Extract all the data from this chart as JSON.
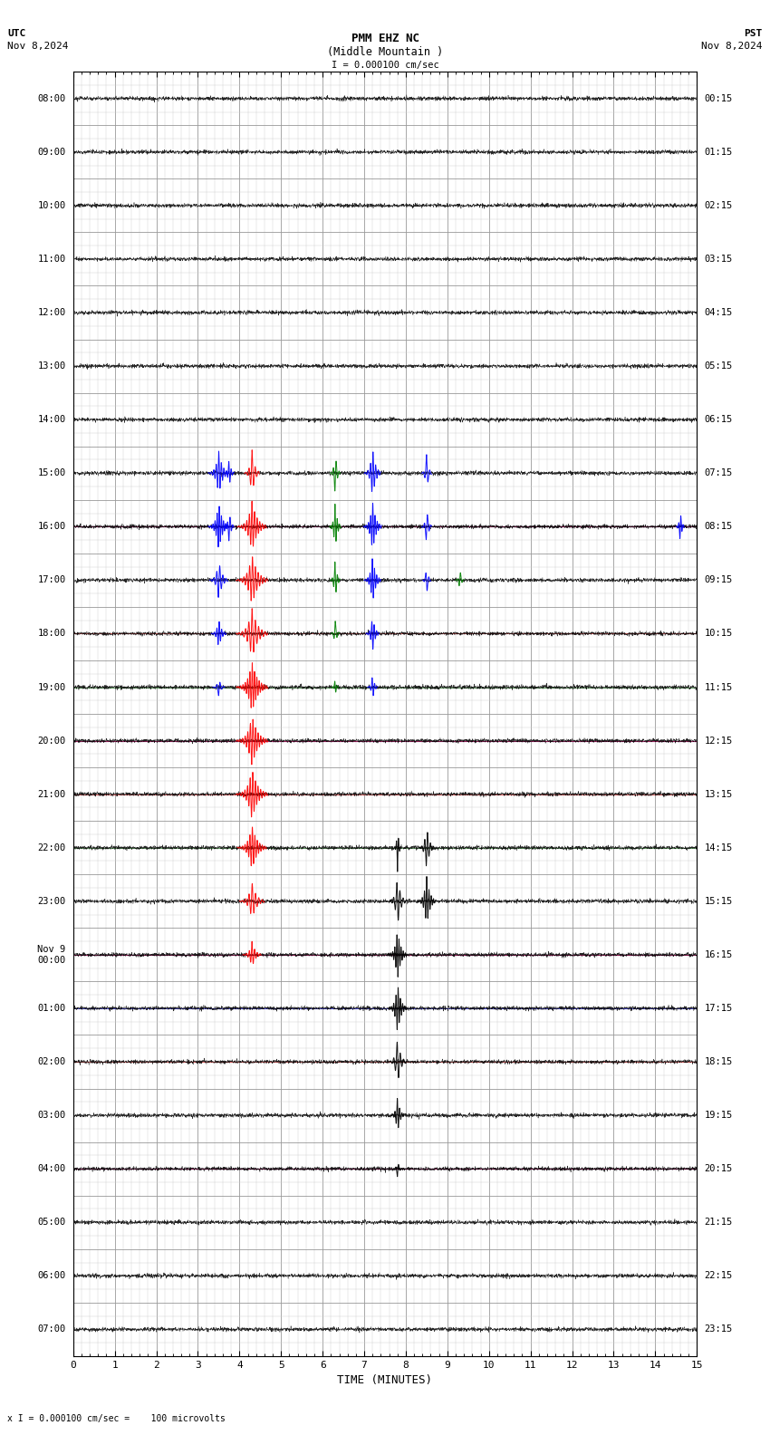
{
  "title_line1": "PMM EHZ NC",
  "title_line2": "(Middle Mountain )",
  "scale_text": "I = 0.000100 cm/sec",
  "utc_label": "UTC",
  "utc_date": "Nov 8,2024",
  "pst_label": "PST",
  "pst_date": "Nov 8,2024",
  "footer_text": "x I = 0.000100 cm/sec =    100 microvolts",
  "xlabel": "TIME (MINUTES)",
  "left_times": [
    "08:00",
    "09:00",
    "10:00",
    "11:00",
    "12:00",
    "13:00",
    "14:00",
    "15:00",
    "16:00",
    "17:00",
    "18:00",
    "19:00",
    "20:00",
    "21:00",
    "22:00",
    "23:00",
    "Nov 9\n00:00",
    "01:00",
    "02:00",
    "03:00",
    "04:00",
    "05:00",
    "06:00",
    "07:00"
  ],
  "right_times": [
    "00:15",
    "01:15",
    "02:15",
    "03:15",
    "04:15",
    "05:15",
    "06:15",
    "07:15",
    "08:15",
    "09:15",
    "10:15",
    "11:15",
    "12:15",
    "13:15",
    "14:15",
    "15:15",
    "16:15",
    "17:15",
    "18:15",
    "19:15",
    "20:15",
    "21:15",
    "22:15",
    "23:15"
  ],
  "num_rows": 24,
  "minutes_per_row": 15,
  "background_color": "#ffffff",
  "grid_major_color": "#999999",
  "grid_minor_color": "#cccccc",
  "trace_color": "#000000",
  "noise_amplitude": 0.018,
  "fig_width": 8.5,
  "fig_height": 15.84,
  "dpi": 100,
  "blue_line_rows": [
    8,
    12,
    16,
    17,
    20
  ],
  "red_line_rows": [
    8,
    10,
    12,
    13,
    16,
    18,
    20
  ],
  "green_line_rows": [
    11,
    14
  ],
  "seismic_events": [
    {
      "row": 7,
      "minute": 3.5,
      "half_dur": 0.25,
      "amplitude": 0.42,
      "color": "#0000ff"
    },
    {
      "row": 7,
      "minute": 3.75,
      "half_dur": 0.12,
      "amplitude": 0.28,
      "color": "#0000ff"
    },
    {
      "row": 8,
      "minute": 3.5,
      "half_dur": 0.25,
      "amplitude": 0.45,
      "color": "#0000ff"
    },
    {
      "row": 8,
      "minute": 3.75,
      "half_dur": 0.12,
      "amplitude": 0.32,
      "color": "#0000ff"
    },
    {
      "row": 9,
      "minute": 3.5,
      "half_dur": 0.22,
      "amplitude": 0.38,
      "color": "#0000ff"
    },
    {
      "row": 10,
      "minute": 3.5,
      "half_dur": 0.18,
      "amplitude": 0.28,
      "color": "#0000ff"
    },
    {
      "row": 11,
      "minute": 3.5,
      "half_dur": 0.14,
      "amplitude": 0.18,
      "color": "#0000ff"
    },
    {
      "row": 7,
      "minute": 4.3,
      "half_dur": 0.18,
      "amplitude": 0.45,
      "color": "#ff0000"
    },
    {
      "row": 8,
      "minute": 4.3,
      "half_dur": 0.35,
      "amplitude": 0.48,
      "color": "#ff0000"
    },
    {
      "row": 9,
      "minute": 4.3,
      "half_dur": 0.38,
      "amplitude": 0.48,
      "color": "#ff0000"
    },
    {
      "row": 10,
      "minute": 4.3,
      "half_dur": 0.38,
      "amplitude": 0.48,
      "color": "#ff0000"
    },
    {
      "row": 11,
      "minute": 4.3,
      "half_dur": 0.38,
      "amplitude": 0.48,
      "color": "#ff0000"
    },
    {
      "row": 12,
      "minute": 4.3,
      "half_dur": 0.38,
      "amplitude": 0.48,
      "color": "#ff0000"
    },
    {
      "row": 13,
      "minute": 4.3,
      "half_dur": 0.38,
      "amplitude": 0.48,
      "color": "#ff0000"
    },
    {
      "row": 14,
      "minute": 4.3,
      "half_dur": 0.35,
      "amplitude": 0.42,
      "color": "#ff0000"
    },
    {
      "row": 15,
      "minute": 4.3,
      "half_dur": 0.3,
      "amplitude": 0.35,
      "color": "#ff0000"
    },
    {
      "row": 16,
      "minute": 4.3,
      "half_dur": 0.22,
      "amplitude": 0.25,
      "color": "#ff0000"
    },
    {
      "row": 7,
      "minute": 6.3,
      "half_dur": 0.12,
      "amplitude": 0.42,
      "color": "#008000"
    },
    {
      "row": 8,
      "minute": 6.3,
      "half_dur": 0.14,
      "amplitude": 0.45,
      "color": "#008000"
    },
    {
      "row": 9,
      "minute": 6.3,
      "half_dur": 0.12,
      "amplitude": 0.4,
      "color": "#008000"
    },
    {
      "row": 10,
      "minute": 6.3,
      "half_dur": 0.1,
      "amplitude": 0.28,
      "color": "#008000"
    },
    {
      "row": 11,
      "minute": 6.3,
      "half_dur": 0.08,
      "amplitude": 0.18,
      "color": "#008000"
    },
    {
      "row": 9,
      "minute": 9.3,
      "half_dur": 0.1,
      "amplitude": 0.22,
      "color": "#008000"
    },
    {
      "row": 7,
      "minute": 7.2,
      "half_dur": 0.2,
      "amplitude": 0.48,
      "color": "#0000ff"
    },
    {
      "row": 8,
      "minute": 7.2,
      "half_dur": 0.22,
      "amplitude": 0.48,
      "color": "#0000ff"
    },
    {
      "row": 9,
      "minute": 7.2,
      "half_dur": 0.2,
      "amplitude": 0.45,
      "color": "#0000ff"
    },
    {
      "row": 10,
      "minute": 7.2,
      "half_dur": 0.16,
      "amplitude": 0.35,
      "color": "#0000ff"
    },
    {
      "row": 11,
      "minute": 7.2,
      "half_dur": 0.12,
      "amplitude": 0.25,
      "color": "#0000ff"
    },
    {
      "row": 7,
      "minute": 8.5,
      "half_dur": 0.12,
      "amplitude": 0.38,
      "color": "#0000ff"
    },
    {
      "row": 8,
      "minute": 8.5,
      "half_dur": 0.12,
      "amplitude": 0.38,
      "color": "#0000ff"
    },
    {
      "row": 9,
      "minute": 8.5,
      "half_dur": 0.1,
      "amplitude": 0.3,
      "color": "#0000ff"
    },
    {
      "row": 8,
      "minute": 14.6,
      "half_dur": 0.1,
      "amplitude": 0.32,
      "color": "#0000ff"
    },
    {
      "row": 14,
      "minute": 7.8,
      "half_dur": 0.08,
      "amplitude": 0.45,
      "color": "#000000"
    },
    {
      "row": 14,
      "minute": 8.5,
      "half_dur": 0.18,
      "amplitude": 0.42,
      "color": "#000000"
    },
    {
      "row": 15,
      "minute": 7.8,
      "half_dur": 0.2,
      "amplitude": 0.48,
      "color": "#000000"
    },
    {
      "row": 15,
      "minute": 8.5,
      "half_dur": 0.22,
      "amplitude": 0.48,
      "color": "#000000"
    },
    {
      "row": 16,
      "minute": 7.8,
      "half_dur": 0.22,
      "amplitude": 0.48,
      "color": "#000000"
    },
    {
      "row": 17,
      "minute": 7.8,
      "half_dur": 0.22,
      "amplitude": 0.48,
      "color": "#000000"
    },
    {
      "row": 18,
      "minute": 7.8,
      "half_dur": 0.2,
      "amplitude": 0.45,
      "color": "#000000"
    },
    {
      "row": 19,
      "minute": 7.8,
      "half_dur": 0.16,
      "amplitude": 0.35,
      "color": "#000000"
    },
    {
      "row": 20,
      "minute": 7.8,
      "half_dur": 0.1,
      "amplitude": 0.18,
      "color": "#000000"
    }
  ]
}
